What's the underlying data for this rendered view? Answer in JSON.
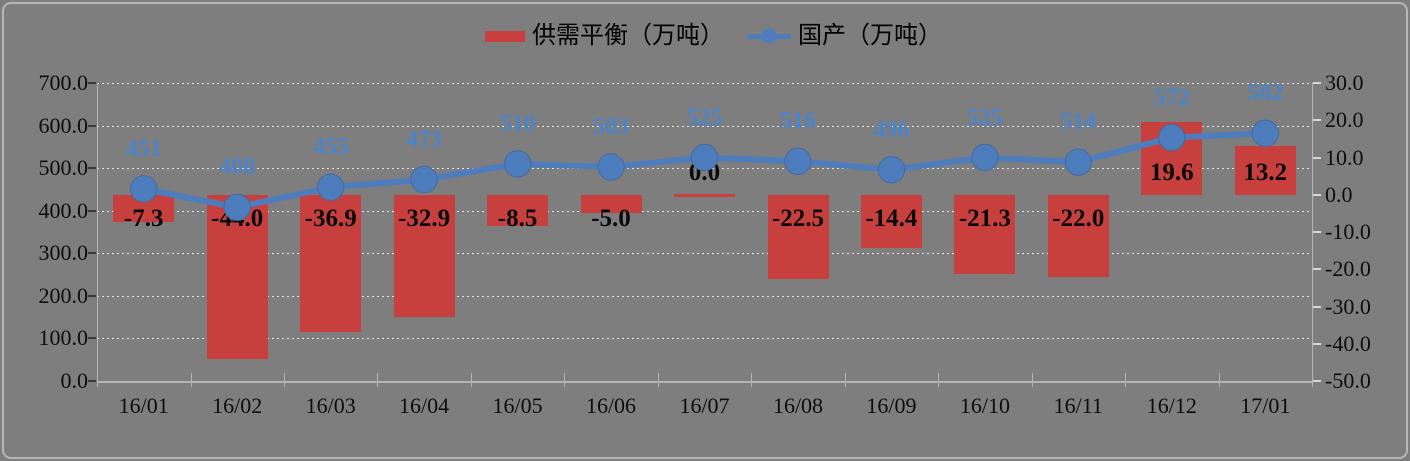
{
  "legend": {
    "bar_label": "供需平衡（万吨）",
    "line_label": "国产（万吨）"
  },
  "colors": {
    "background": "#7E7E7E",
    "frame_border": "#B6B6B6",
    "bar_red": "#C8403E",
    "line_blue": "#4E7DBE",
    "point_label_blue": "#4C84CB",
    "gridline": "#E3E3E3",
    "axis_text": "#0D0D0D"
  },
  "chart_data": {
    "type": "combo",
    "title": "",
    "grid": true,
    "legend_position": "top",
    "categories": [
      "16/01",
      "16/02",
      "16/03",
      "16/04",
      "16/05",
      "16/06",
      "16/07",
      "16/08",
      "16/09",
      "16/10",
      "16/11",
      "16/12",
      "17/01"
    ],
    "series": [
      {
        "name": "供需平衡（万吨）",
        "type": "bar",
        "axis": "right",
        "color": "#C8403E",
        "values": [
          -7.3,
          -44.0,
          -36.9,
          -32.9,
          -8.5,
          -5.0,
          0.0,
          -22.5,
          -14.4,
          -21.3,
          -22.0,
          19.6,
          13.2
        ],
        "labels": [
          "-7.3",
          "-44.0",
          "-36.9",
          "-32.9",
          "-8.5",
          "-5.0",
          "0.0",
          "-22.5",
          "-14.4",
          "-21.3",
          "-22.0",
          "19.6",
          "13.2"
        ]
      },
      {
        "name": "国产（万吨）",
        "type": "line",
        "axis": "left",
        "color": "#4E7DBE",
        "values": [
          451,
          408,
          455,
          473,
          510,
          503,
          525,
          516,
          496,
          525,
          514,
          572,
          582
        ],
        "labels": [
          "451",
          "408",
          "455",
          "473",
          "510",
          "503",
          "525",
          "516",
          "496",
          "525",
          "514",
          "572",
          "582"
        ]
      }
    ],
    "left_axis": {
      "min": 0,
      "max": 700,
      "step": 100,
      "tick_labels": [
        "700.0",
        "600.0",
        "500.0",
        "400.0",
        "300.0",
        "200.0",
        "100.0",
        "0.0"
      ]
    },
    "right_axis": {
      "min": -50,
      "max": 30,
      "step": 10,
      "tick_labels": [
        "30.0",
        "20.0",
        "10.0",
        "0.0",
        "-10.0",
        "-20.0",
        "-30.0",
        "-40.0",
        "-50.0"
      ]
    }
  }
}
